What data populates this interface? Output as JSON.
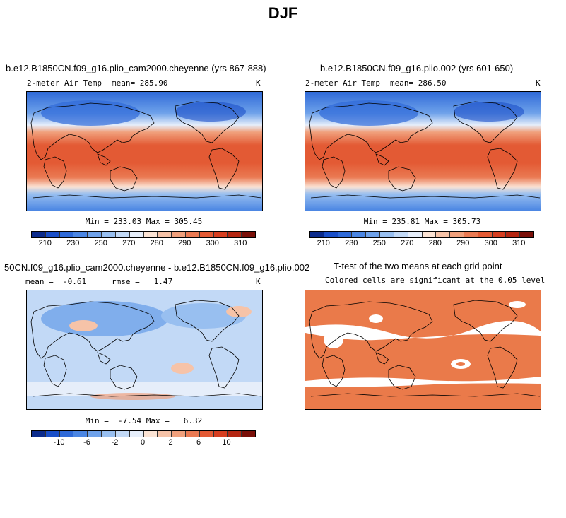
{
  "page_title": "DJF",
  "panels": [
    {
      "title": "b.e12.B1850CN.f09_g16.plio_cam2000.cheyenne (yrs 867-888)",
      "var_label": "2-meter Air Temp",
      "stat_label": "mean= 285.90",
      "units": "K",
      "range_text": "Min = 233.03 Max = 305.45",
      "colorbar_ticks": [
        "210",
        "230",
        "250",
        "270",
        "280",
        "290",
        "300",
        "310"
      ]
    },
    {
      "title": "b.e12.B1850CN.f09_g16.plio.002 (yrs 601-650)",
      "var_label": "2-meter Air Temp",
      "stat_label": "mean= 286.50",
      "units": "K",
      "range_text": "Min = 235.81 Max = 305.73",
      "colorbar_ticks": [
        "210",
        "230",
        "250",
        "270",
        "280",
        "290",
        "300",
        "310"
      ]
    },
    {
      "title": "50CN.f09_g16.plio_cam2000.cheyenne - b.e12.B1850CN.f09_g16.plio.002",
      "var_label": "mean =  -0.61",
      "stat_label": "rmse =   1.47",
      "units": "K",
      "range_text": "Min =  -7.54 Max =   6.32",
      "colorbar_ticks": [
        "-10",
        "-6",
        "-2",
        "0",
        "2",
        "6",
        "10"
      ]
    },
    {
      "title": "T-test of the two means at each grid point",
      "subtitle": "Colored cells are significant at the 0.05 level"
    }
  ],
  "colors": {
    "temp_scale": [
      "#0b2b8c",
      "#1a4fc8",
      "#2f6ad8",
      "#4b86e3",
      "#6fa2ea",
      "#98bff0",
      "#c2d9f6",
      "#e6eefa",
      "#fbe3d4",
      "#f6c3a8",
      "#f0a07c",
      "#ea7a53",
      "#e35a34",
      "#d63e20",
      "#b42612",
      "#7a0f08"
    ],
    "diff_scale": [
      "#0b2b8c",
      "#1a4fc8",
      "#2f6ad8",
      "#4b86e3",
      "#6fa2ea",
      "#98bff0",
      "#c2d9f6",
      "#e6eefa",
      "#fbe3d4",
      "#f6c3a8",
      "#f0a07c",
      "#ea7a53",
      "#e35a34",
      "#d63e20",
      "#b42612",
      "#7a0f08"
    ],
    "ttest_fill": "#ea7a4a"
  }
}
